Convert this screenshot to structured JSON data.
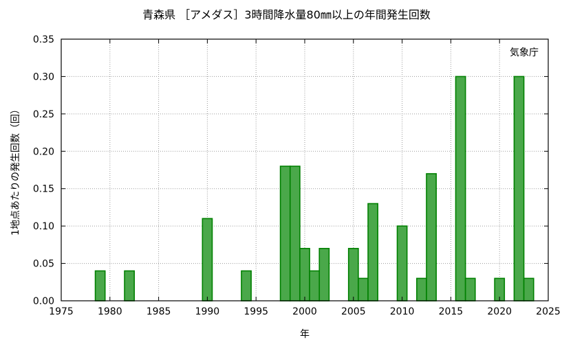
{
  "chart_data": {
    "type": "bar",
    "title": "青森県 ［アメダス］3時間降水量80㎜以上の年間発生回数",
    "xlabel": "年",
    "ylabel": "1地点あたりの発生回数（回）",
    "annotation": "気象庁",
    "xlim": [
      1975,
      2025
    ],
    "ylim": [
      0,
      0.35
    ],
    "xticks": [
      "1975",
      "1980",
      "1985",
      "1990",
      "1995",
      "2000",
      "2005",
      "2010",
      "2015",
      "2020",
      "2025"
    ],
    "yticks": [
      "0.00",
      "0.05",
      "0.10",
      "0.15",
      "0.20",
      "0.25",
      "0.30",
      "0.35"
    ],
    "grid": true,
    "bar_color": "#4aa84a",
    "bar_edge_color": "#008000",
    "x": [
      1979,
      1982,
      1990,
      1994,
      1998,
      1999,
      2000,
      2001,
      2002,
      2005,
      2006,
      2007,
      2010,
      2012,
      2013,
      2016,
      2017,
      2020,
      2022,
      2023
    ],
    "values": [
      0.04,
      0.04,
      0.11,
      0.04,
      0.18,
      0.18,
      0.07,
      0.04,
      0.07,
      0.07,
      0.03,
      0.13,
      0.1,
      0.03,
      0.17,
      0.3,
      0.03,
      0.03,
      0.3,
      0.03
    ]
  }
}
